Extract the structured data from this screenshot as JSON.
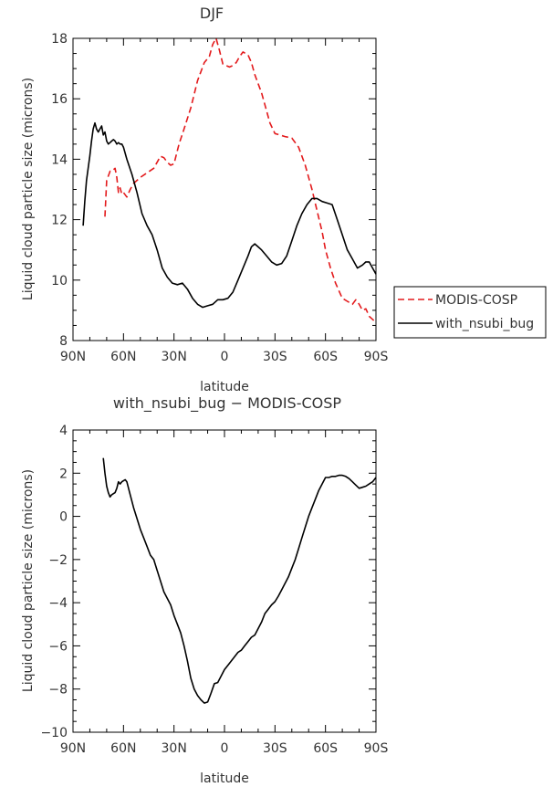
{
  "chart_data": [
    {
      "type": "line",
      "title": "DJF",
      "xlabel": "latitude",
      "ylabel": "Liquid cloud particle size (microns)",
      "xlim": [
        90,
        -90
      ],
      "ylim": [
        8,
        18
      ],
      "xticks": [
        90,
        60,
        30,
        0,
        -30,
        -60,
        -90
      ],
      "xtick_labels": [
        "90N",
        "60N",
        "30N",
        "0",
        "30S",
        "60S",
        "90S"
      ],
      "yticks": [
        8,
        10,
        12,
        14,
        16,
        18
      ],
      "ytick_labels": [
        "8",
        "10",
        "12",
        "14",
        "16",
        "18"
      ],
      "legend_position": "right",
      "series": [
        {
          "name": "MODIS-COSP",
          "color": "#e31a1c",
          "dash": "dashed",
          "x": [
            71,
            70,
            68,
            67,
            65,
            64,
            63,
            62,
            61,
            60,
            58,
            56,
            54,
            50,
            46,
            42,
            40,
            38,
            36,
            34,
            32,
            30,
            27,
            24,
            20,
            16,
            12,
            9,
            7,
            5,
            3,
            1,
            -1,
            -3,
            -5,
            -7,
            -9,
            -11,
            -14,
            -16,
            -18,
            -20,
            -22,
            -24,
            -27,
            -30,
            -33,
            -36,
            -40,
            -44,
            -48,
            -52,
            -55,
            -58,
            -60,
            -63,
            -66,
            -70,
            -73,
            -76,
            -78,
            -80,
            -82,
            -84,
            -86,
            -88,
            -90
          ],
          "y": [
            12.1,
            13.3,
            13.6,
            13.6,
            13.7,
            13.4,
            12.9,
            13.05,
            12.85,
            12.9,
            12.75,
            13.0,
            13.2,
            13.4,
            13.55,
            13.7,
            13.9,
            14.1,
            14.05,
            13.9,
            13.8,
            13.85,
            14.5,
            15.0,
            15.7,
            16.6,
            17.2,
            17.4,
            17.8,
            18.0,
            17.6,
            17.15,
            17.1,
            17.05,
            17.1,
            17.2,
            17.4,
            17.55,
            17.45,
            17.2,
            16.8,
            16.5,
            16.2,
            15.8,
            15.2,
            14.85,
            14.8,
            14.75,
            14.7,
            14.4,
            13.8,
            13.0,
            12.3,
            11.6,
            11.0,
            10.4,
            9.9,
            9.4,
            9.3,
            9.2,
            9.35,
            9.2,
            9.0,
            9.05,
            8.8,
            8.7,
            8.6
          ]
        },
        {
          "name": "with_nsubi_bug",
          "color": "#000000",
          "dash": "solid",
          "x": [
            84,
            83,
            82,
            81,
            80,
            79,
            78,
            77,
            76,
            75,
            74,
            73,
            72,
            71,
            70,
            69,
            68,
            67,
            66,
            65,
            64,
            63,
            62,
            61,
            60,
            58,
            55,
            52,
            49,
            46,
            43,
            40,
            37,
            34,
            31,
            28,
            25,
            22,
            19,
            16,
            13,
            10,
            7,
            4,
            1,
            -2,
            -5,
            -8,
            -11,
            -14,
            -16,
            -18,
            -20,
            -22,
            -25,
            -28,
            -31,
            -34,
            -37,
            -40,
            -43,
            -46,
            -49,
            -52,
            -55,
            -58,
            -61,
            -64,
            -67,
            -70,
            -73,
            -76,
            -79,
            -82,
            -84,
            -86,
            -88,
            -90
          ],
          "y": [
            11.8,
            12.6,
            13.3,
            13.7,
            14.1,
            14.6,
            15.0,
            15.2,
            15.0,
            14.9,
            15.0,
            15.1,
            14.8,
            14.9,
            14.6,
            14.5,
            14.55,
            14.6,
            14.65,
            14.6,
            14.5,
            14.55,
            14.5,
            14.5,
            14.4,
            14.0,
            13.5,
            12.9,
            12.2,
            11.8,
            11.5,
            11.0,
            10.4,
            10.1,
            9.9,
            9.85,
            9.9,
            9.7,
            9.4,
            9.2,
            9.1,
            9.15,
            9.2,
            9.35,
            9.35,
            9.4,
            9.6,
            10.0,
            10.4,
            10.8,
            11.1,
            11.2,
            11.1,
            11.0,
            10.8,
            10.6,
            10.5,
            10.55,
            10.8,
            11.3,
            11.8,
            12.2,
            12.5,
            12.7,
            12.7,
            12.6,
            12.55,
            12.5,
            12.0,
            11.5,
            11.0,
            10.7,
            10.4,
            10.5,
            10.6,
            10.6,
            10.4,
            10.2
          ]
        }
      ]
    },
    {
      "type": "line",
      "title": "with_nsubi_bug − MODIS-COSP",
      "xlabel": "latitude",
      "ylabel": "Liquid cloud particle size (microns)",
      "xlim": [
        90,
        -90
      ],
      "ylim": [
        -10,
        4
      ],
      "xticks": [
        90,
        60,
        30,
        0,
        -30,
        -60,
        -90
      ],
      "xtick_labels": [
        "90N",
        "60N",
        "30N",
        "0",
        "30S",
        "60S",
        "90S"
      ],
      "yticks": [
        -10,
        -8,
        -6,
        -4,
        -2,
        0,
        2,
        4
      ],
      "ytick_labels": [
        "−10",
        "−8",
        "−6",
        "−4",
        "−2",
        "0",
        "2",
        "4"
      ],
      "series": [
        {
          "name": "with_nsubi_bug − MODIS-COSP",
          "color": "#000000",
          "dash": "solid",
          "x": [
            72,
            71,
            70,
            69,
            68,
            67,
            66,
            65,
            64,
            63,
            62,
            61,
            60,
            59,
            58,
            56,
            54,
            52,
            50,
            48,
            46,
            44,
            42,
            40,
            38,
            36,
            34,
            32,
            30,
            28,
            26,
            24,
            22,
            20,
            18,
            16,
            14,
            12,
            10,
            8,
            6,
            4,
            2,
            0,
            -2,
            -4,
            -6,
            -8,
            -10,
            -12,
            -14,
            -16,
            -18,
            -20,
            -22,
            -24,
            -26,
            -28,
            -30,
            -32,
            -34,
            -36,
            -38,
            -40,
            -42,
            -44,
            -46,
            -48,
            -50,
            -52,
            -54,
            -56,
            -58,
            -60,
            -62,
            -64,
            -66,
            -68,
            -70,
            -72,
            -74,
            -76,
            -78,
            -80,
            -82,
            -84,
            -86,
            -88,
            -90
          ],
          "y": [
            2.7,
            2.0,
            1.4,
            1.1,
            0.9,
            1.0,
            1.05,
            1.1,
            1.3,
            1.6,
            1.5,
            1.6,
            1.65,
            1.7,
            1.6,
            1.0,
            0.4,
            -0.1,
            -0.6,
            -1.0,
            -1.4,
            -1.8,
            -2.0,
            -2.5,
            -3.0,
            -3.5,
            -3.8,
            -4.1,
            -4.6,
            -5.0,
            -5.4,
            -6.0,
            -6.7,
            -7.5,
            -8.0,
            -8.3,
            -8.5,
            -8.65,
            -8.6,
            -8.2,
            -7.75,
            -7.7,
            -7.4,
            -7.1,
            -6.9,
            -6.7,
            -6.5,
            -6.3,
            -6.2,
            -6.0,
            -5.8,
            -5.6,
            -5.5,
            -5.2,
            -4.9,
            -4.5,
            -4.3,
            -4.1,
            -3.95,
            -3.7,
            -3.4,
            -3.1,
            -2.8,
            -2.4,
            -2.0,
            -1.5,
            -1.0,
            -0.5,
            0.0,
            0.4,
            0.8,
            1.2,
            1.5,
            1.8,
            1.8,
            1.85,
            1.85,
            1.9,
            1.9,
            1.85,
            1.75,
            1.6,
            1.45,
            1.3,
            1.35,
            1.4,
            1.5,
            1.6,
            1.8
          ]
        }
      ]
    }
  ]
}
